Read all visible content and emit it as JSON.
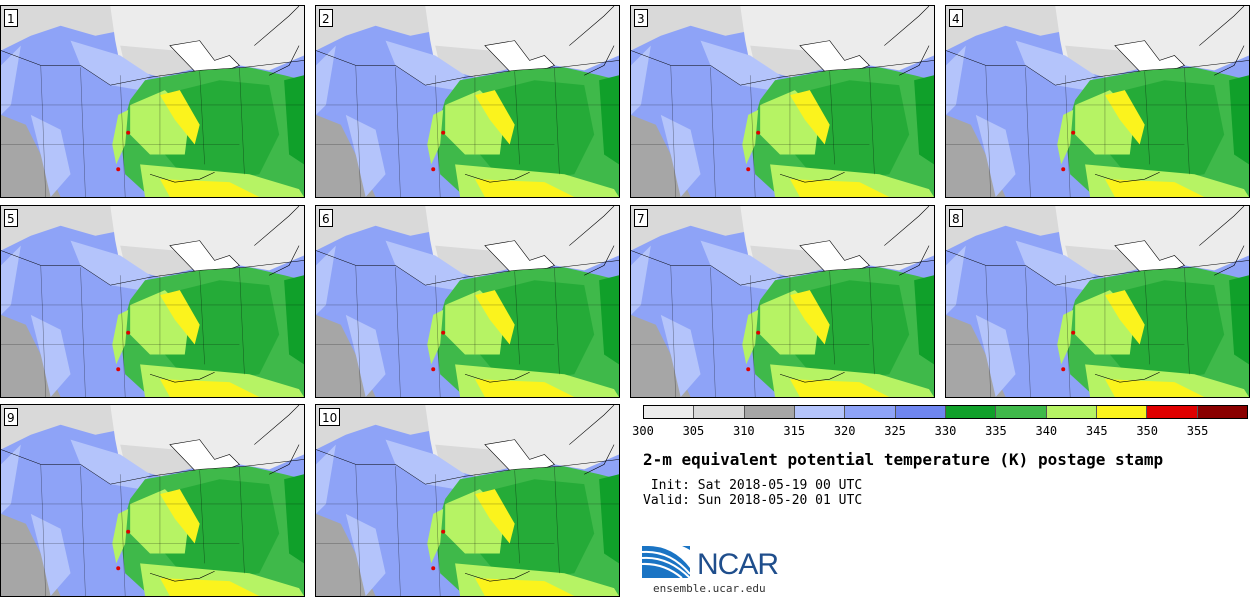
{
  "panels": [
    {
      "label": "1"
    },
    {
      "label": "2"
    },
    {
      "label": "3"
    },
    {
      "label": "4"
    },
    {
      "label": "5"
    },
    {
      "label": "6"
    },
    {
      "label": "7"
    },
    {
      "label": "8"
    },
    {
      "label": "9"
    },
    {
      "label": "10"
    }
  ],
  "colorbar": {
    "colors": [
      "#ececec",
      "#d9d9d9",
      "#a6a6a6",
      "#b4c4fb",
      "#8ea3f7",
      "#6f86f0",
      "#10a02a",
      "#3fb94a",
      "#b6f364",
      "#fbf31d",
      "#e00000",
      "#8a0000"
    ],
    "ticks": [
      "300",
      "305",
      "310",
      "315",
      "320",
      "325",
      "330",
      "335",
      "340",
      "345",
      "350",
      "355"
    ]
  },
  "title": "2-m equivalent potential temperature (K) postage stamp",
  "init": " Init: Sat 2018-05-19 00 UTC",
  "valid": "Valid: Sun 2018-05-20 01 UTC",
  "logo": {
    "text": "NCAR",
    "url": "ensemble.ucar.edu"
  }
}
